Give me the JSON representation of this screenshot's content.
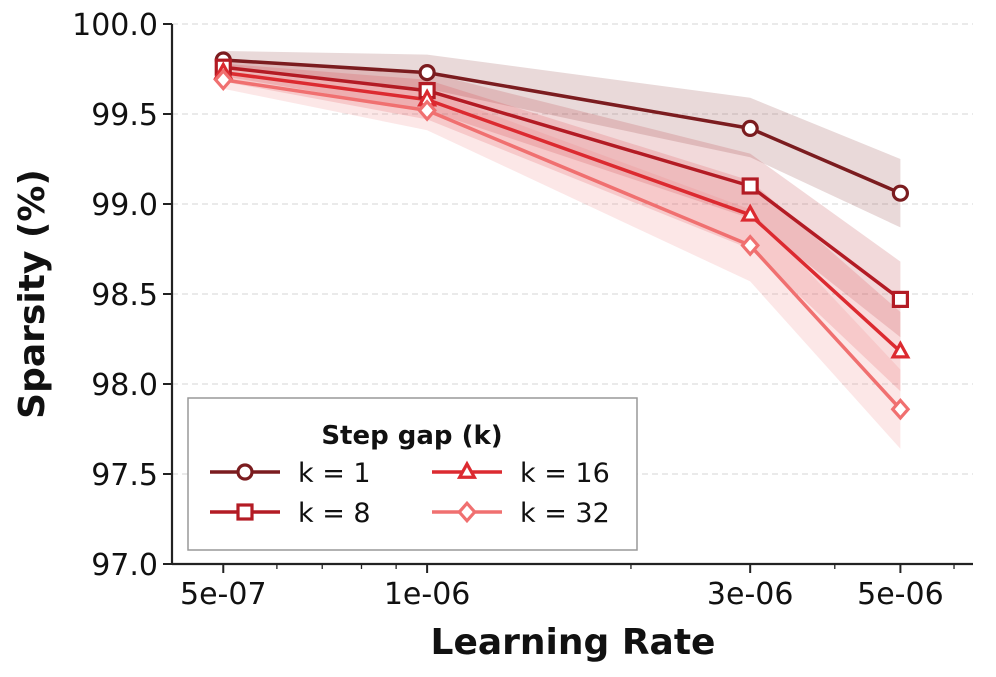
{
  "chart_data": {
    "type": "line",
    "xscale": "log",
    "x": [
      5e-07,
      1e-06,
      3e-06,
      5e-06
    ],
    "xtick_labels": [
      "5e-07",
      "1e-06",
      "3e-06",
      "5e-06"
    ],
    "xlabel": "Learning Rate",
    "ylabel": "Sparsity (%)",
    "ylim": [
      97.0,
      100.0
    ],
    "yticks": [
      "97.0",
      "97.5",
      "98.0",
      "98.5",
      "99.0",
      "99.5",
      "100.0"
    ],
    "grid": "y-dashed",
    "legend": {
      "title": "Step gap (k)",
      "placement": "lower-left",
      "columns": 2
    },
    "series": [
      {
        "name": "k = 1",
        "marker": "circle",
        "color": "#7b1c1f",
        "values": [
          99.8,
          99.73,
          99.42,
          99.06
        ],
        "band_low": [
          99.75,
          99.64,
          99.26,
          98.87
        ],
        "band_high": [
          99.85,
          99.83,
          99.59,
          99.25
        ]
      },
      {
        "name": "k = 8",
        "marker": "square",
        "color": "#b31b24",
        "values": [
          99.76,
          99.63,
          99.1,
          98.47
        ],
        "band_low": [
          99.71,
          99.52,
          98.92,
          98.26
        ],
        "band_high": [
          99.81,
          99.73,
          99.28,
          98.68
        ]
      },
      {
        "name": "k = 16",
        "marker": "triangle",
        "color": "#dc2a30",
        "values": [
          99.73,
          99.58,
          98.94,
          98.18
        ],
        "band_low": [
          99.68,
          99.47,
          98.75,
          97.96
        ],
        "band_high": [
          99.78,
          99.69,
          99.13,
          98.4
        ]
      },
      {
        "name": "k = 32",
        "marker": "diamond",
        "color": "#f07070",
        "values": [
          99.69,
          99.52,
          98.77,
          97.86
        ],
        "band_low": [
          99.64,
          99.41,
          98.57,
          97.64
        ],
        "band_high": [
          99.74,
          99.63,
          98.97,
          98.08
        ]
      }
    ]
  }
}
